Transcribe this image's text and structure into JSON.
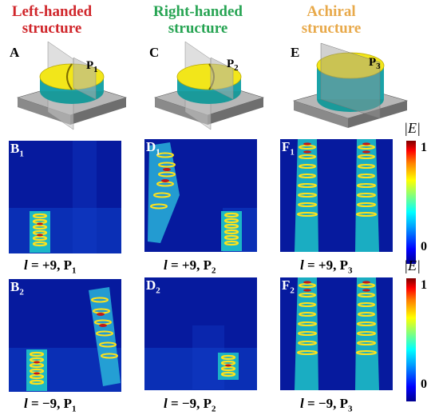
{
  "columns": [
    {
      "title_line1": "Left-handed",
      "title_line2": "structure",
      "color": "#d0262b",
      "top_label": "A",
      "plane_label": "P",
      "plane_sub": "1"
    },
    {
      "title_line1": "Right-handed",
      "title_line2": "structure",
      "color": "#27a453",
      "top_label": "C",
      "plane_label": "P",
      "plane_sub": "2"
    },
    {
      "title_line1": "Achiral",
      "title_line2": "structure",
      "color": "#e8a94a",
      "top_label": "E",
      "plane_label": "P",
      "plane_sub": "3"
    }
  ],
  "panels_row1": [
    {
      "letter": "B",
      "sub": "1"
    },
    {
      "letter": "D",
      "sub": "1"
    },
    {
      "letter": "F",
      "sub": "1"
    }
  ],
  "panels_row2": [
    {
      "letter": "B",
      "sub": "2"
    },
    {
      "letter": "D",
      "sub": "2"
    },
    {
      "letter": "F",
      "sub": "2"
    }
  ],
  "captions_row1": [
    {
      "l": "l",
      "eq": " = +9, ",
      "p": "P",
      "sub": "1"
    },
    {
      "l": "l",
      "eq": " = +9, ",
      "p": "P",
      "sub": "2"
    },
    {
      "l": "l",
      "eq": " = +9, ",
      "p": "P",
      "sub": "3"
    }
  ],
  "captions_row2": [
    {
      "l": "l",
      "eq": " = −9, ",
      "p": "P",
      "sub": "1"
    },
    {
      "l": "l",
      "eq": " = −9, ",
      "p": "P",
      "sub": "2"
    },
    {
      "l": "l",
      "eq": " = −9, ",
      "p": "P",
      "sub": "3"
    }
  ],
  "colorbar": {
    "title": "|E|",
    "max": "1",
    "min": "0"
  }
}
